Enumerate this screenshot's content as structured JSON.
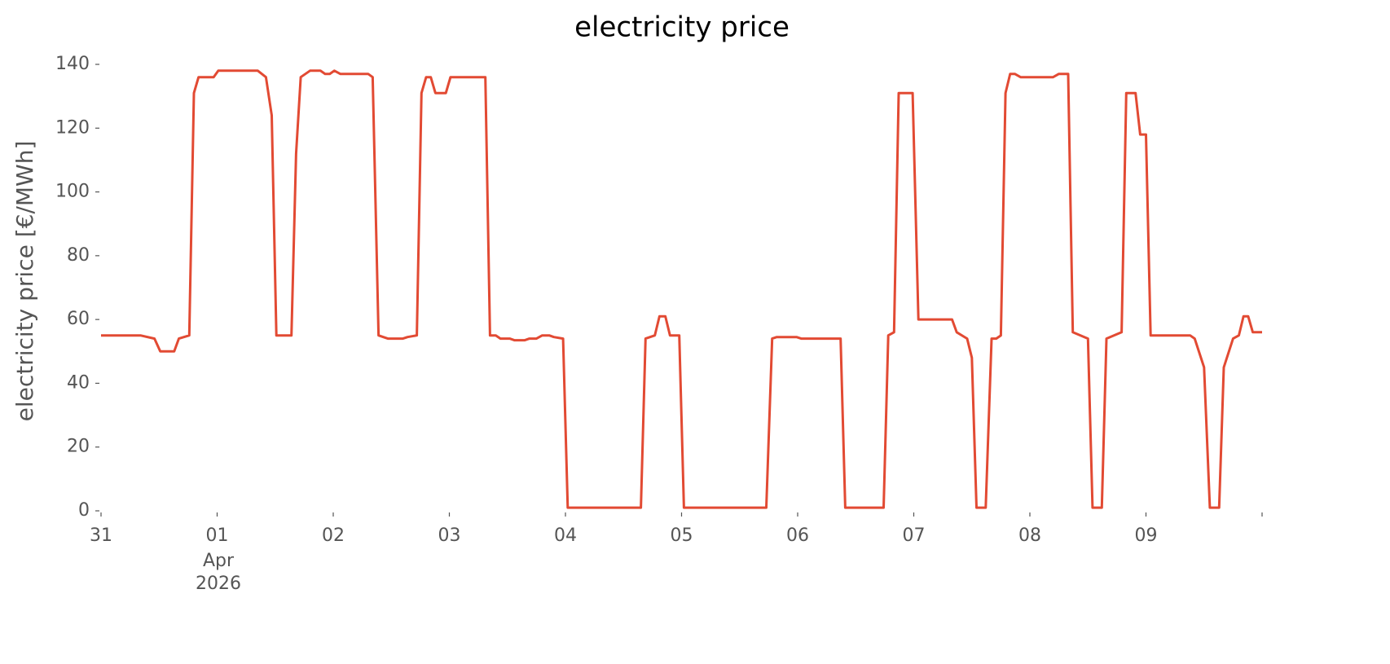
{
  "chart_data": {
    "type": "line",
    "title": "electricity price",
    "y_label": "electricity price [€/MWh]",
    "x_month_label": "Apr",
    "x_year_label": "2026",
    "xlim": [
      0,
      10
    ],
    "ylim": [
      0,
      140
    ],
    "xticks": [
      {
        "value": 0,
        "label": "31"
      },
      {
        "value": 1,
        "label": "01"
      },
      {
        "value": 2,
        "label": "02"
      },
      {
        "value": 3,
        "label": "03"
      },
      {
        "value": 4,
        "label": "04"
      },
      {
        "value": 5,
        "label": "05"
      },
      {
        "value": 6,
        "label": "06"
      },
      {
        "value": 7,
        "label": "07"
      },
      {
        "value": 8,
        "label": "08"
      },
      {
        "value": 9,
        "label": "09"
      },
      {
        "value": 10,
        "label": ""
      }
    ],
    "yticks": [
      0,
      20,
      40,
      60,
      80,
      100,
      120,
      140
    ],
    "series": [
      {
        "name": "electricity price",
        "color": "#e24a33",
        "x": [
          0,
          0.34,
          0.46,
          0.51,
          0.63,
          0.67,
          0.76,
          0.8,
          0.84,
          0.97,
          1.01,
          1.35,
          1.42,
          1.47,
          1.51,
          1.55,
          1.64,
          1.68,
          1.72,
          1.8,
          1.89,
          1.93,
          1.97,
          2.01,
          2.06,
          2.3,
          2.34,
          2.39,
          2.47,
          2.6,
          2.64,
          2.72,
          2.76,
          2.8,
          2.84,
          2.88,
          2.97,
          3.01,
          3.31,
          3.35,
          3.4,
          3.44,
          3.52,
          3.56,
          3.65,
          3.69,
          3.75,
          3.8,
          3.86,
          3.9,
          3.98,
          4.02,
          4.45,
          4.65,
          4.69,
          4.77,
          4.81,
          4.86,
          4.9,
          4.98,
          5.02,
          5.36,
          5.73,
          5.78,
          5.82,
          5.99,
          6.03,
          6.37,
          6.41,
          6.74,
          6.78,
          6.83,
          6.87,
          6.99,
          7.04,
          7.33,
          7.37,
          7.46,
          7.5,
          7.54,
          7.62,
          7.67,
          7.71,
          7.75,
          7.79,
          7.83,
          7.87,
          7.92,
          8.2,
          8.25,
          8.33,
          8.37,
          8.5,
          8.54,
          8.62,
          8.66,
          8.79,
          8.83,
          8.91,
          8.95,
          9,
          9.04,
          9.38,
          9.42,
          9.5,
          9.55,
          9.63,
          9.67,
          9.75,
          9.8,
          9.84,
          9.88,
          9.92,
          10
        ],
        "values": [
          55,
          55,
          54,
          50,
          50,
          54,
          55,
          131,
          136,
          136,
          138,
          138,
          136,
          124,
          55,
          55,
          55,
          112,
          136,
          138,
          138,
          137,
          137,
          138,
          137,
          137,
          136,
          55,
          54,
          54,
          54.5,
          55,
          131,
          136,
          136,
          131,
          131,
          136,
          136,
          55,
          55,
          54,
          54,
          53.5,
          53.5,
          54,
          54,
          55,
          55,
          54.5,
          54,
          1,
          1,
          1,
          54,
          55,
          61,
          61,
          55,
          55,
          1,
          1,
          1,
          54,
          54.5,
          54.5,
          54,
          54,
          1,
          1,
          55,
          56,
          131,
          131,
          60,
          60,
          56,
          54,
          48,
          1,
          1,
          54,
          54,
          55,
          131,
          137,
          137,
          136,
          136,
          137,
          137,
          56,
          54,
          1,
          1,
          54,
          56,
          131,
          131,
          118,
          118,
          55,
          55,
          54,
          45,
          1,
          1,
          45,
          54,
          55,
          61,
          61,
          56,
          56
        ]
      }
    ]
  }
}
